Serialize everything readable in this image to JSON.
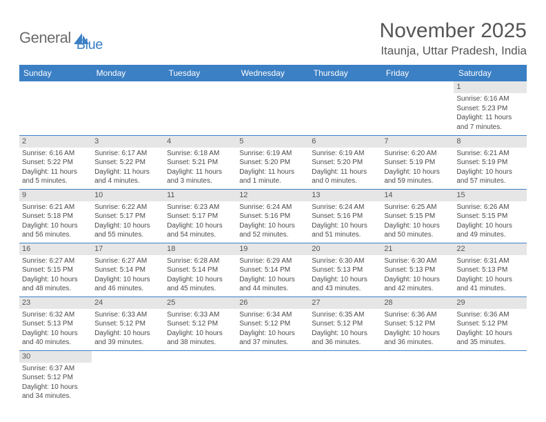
{
  "logo": {
    "part1": "General",
    "part2": "Blue"
  },
  "title": "November 2025",
  "location": "Itaunja, Uttar Pradesh, India",
  "colors": {
    "header_bg": "#3b7fc4",
    "header_text": "#ffffff",
    "daynum_bg": "#e6e6e6",
    "text": "#4a4a4a",
    "border": "#3b7fc4"
  },
  "weekdays": [
    "Sunday",
    "Monday",
    "Tuesday",
    "Wednesday",
    "Thursday",
    "Friday",
    "Saturday"
  ],
  "weeks": [
    [
      null,
      null,
      null,
      null,
      null,
      null,
      {
        "n": "1",
        "sr": "6:16 AM",
        "ss": "5:23 PM",
        "dl": "11 hours and 7 minutes."
      }
    ],
    [
      {
        "n": "2",
        "sr": "6:16 AM",
        "ss": "5:22 PM",
        "dl": "11 hours and 5 minutes."
      },
      {
        "n": "3",
        "sr": "6:17 AM",
        "ss": "5:22 PM",
        "dl": "11 hours and 4 minutes."
      },
      {
        "n": "4",
        "sr": "6:18 AM",
        "ss": "5:21 PM",
        "dl": "11 hours and 3 minutes."
      },
      {
        "n": "5",
        "sr": "6:19 AM",
        "ss": "5:20 PM",
        "dl": "11 hours and 1 minute."
      },
      {
        "n": "6",
        "sr": "6:19 AM",
        "ss": "5:20 PM",
        "dl": "11 hours and 0 minutes."
      },
      {
        "n": "7",
        "sr": "6:20 AM",
        "ss": "5:19 PM",
        "dl": "10 hours and 59 minutes."
      },
      {
        "n": "8",
        "sr": "6:21 AM",
        "ss": "5:19 PM",
        "dl": "10 hours and 57 minutes."
      }
    ],
    [
      {
        "n": "9",
        "sr": "6:21 AM",
        "ss": "5:18 PM",
        "dl": "10 hours and 56 minutes."
      },
      {
        "n": "10",
        "sr": "6:22 AM",
        "ss": "5:17 PM",
        "dl": "10 hours and 55 minutes."
      },
      {
        "n": "11",
        "sr": "6:23 AM",
        "ss": "5:17 PM",
        "dl": "10 hours and 54 minutes."
      },
      {
        "n": "12",
        "sr": "6:24 AM",
        "ss": "5:16 PM",
        "dl": "10 hours and 52 minutes."
      },
      {
        "n": "13",
        "sr": "6:24 AM",
        "ss": "5:16 PM",
        "dl": "10 hours and 51 minutes."
      },
      {
        "n": "14",
        "sr": "6:25 AM",
        "ss": "5:15 PM",
        "dl": "10 hours and 50 minutes."
      },
      {
        "n": "15",
        "sr": "6:26 AM",
        "ss": "5:15 PM",
        "dl": "10 hours and 49 minutes."
      }
    ],
    [
      {
        "n": "16",
        "sr": "6:27 AM",
        "ss": "5:15 PM",
        "dl": "10 hours and 48 minutes."
      },
      {
        "n": "17",
        "sr": "6:27 AM",
        "ss": "5:14 PM",
        "dl": "10 hours and 46 minutes."
      },
      {
        "n": "18",
        "sr": "6:28 AM",
        "ss": "5:14 PM",
        "dl": "10 hours and 45 minutes."
      },
      {
        "n": "19",
        "sr": "6:29 AM",
        "ss": "5:14 PM",
        "dl": "10 hours and 44 minutes."
      },
      {
        "n": "20",
        "sr": "6:30 AM",
        "ss": "5:13 PM",
        "dl": "10 hours and 43 minutes."
      },
      {
        "n": "21",
        "sr": "6:30 AM",
        "ss": "5:13 PM",
        "dl": "10 hours and 42 minutes."
      },
      {
        "n": "22",
        "sr": "6:31 AM",
        "ss": "5:13 PM",
        "dl": "10 hours and 41 minutes."
      }
    ],
    [
      {
        "n": "23",
        "sr": "6:32 AM",
        "ss": "5:13 PM",
        "dl": "10 hours and 40 minutes."
      },
      {
        "n": "24",
        "sr": "6:33 AM",
        "ss": "5:12 PM",
        "dl": "10 hours and 39 minutes."
      },
      {
        "n": "25",
        "sr": "6:33 AM",
        "ss": "5:12 PM",
        "dl": "10 hours and 38 minutes."
      },
      {
        "n": "26",
        "sr": "6:34 AM",
        "ss": "5:12 PM",
        "dl": "10 hours and 37 minutes."
      },
      {
        "n": "27",
        "sr": "6:35 AM",
        "ss": "5:12 PM",
        "dl": "10 hours and 36 minutes."
      },
      {
        "n": "28",
        "sr": "6:36 AM",
        "ss": "5:12 PM",
        "dl": "10 hours and 36 minutes."
      },
      {
        "n": "29",
        "sr": "6:36 AM",
        "ss": "5:12 PM",
        "dl": "10 hours and 35 minutes."
      }
    ],
    [
      {
        "n": "30",
        "sr": "6:37 AM",
        "ss": "5:12 PM",
        "dl": "10 hours and 34 minutes."
      },
      null,
      null,
      null,
      null,
      null,
      null
    ]
  ],
  "labels": {
    "sunrise": "Sunrise:",
    "sunset": "Sunset:",
    "daylight": "Daylight:"
  }
}
